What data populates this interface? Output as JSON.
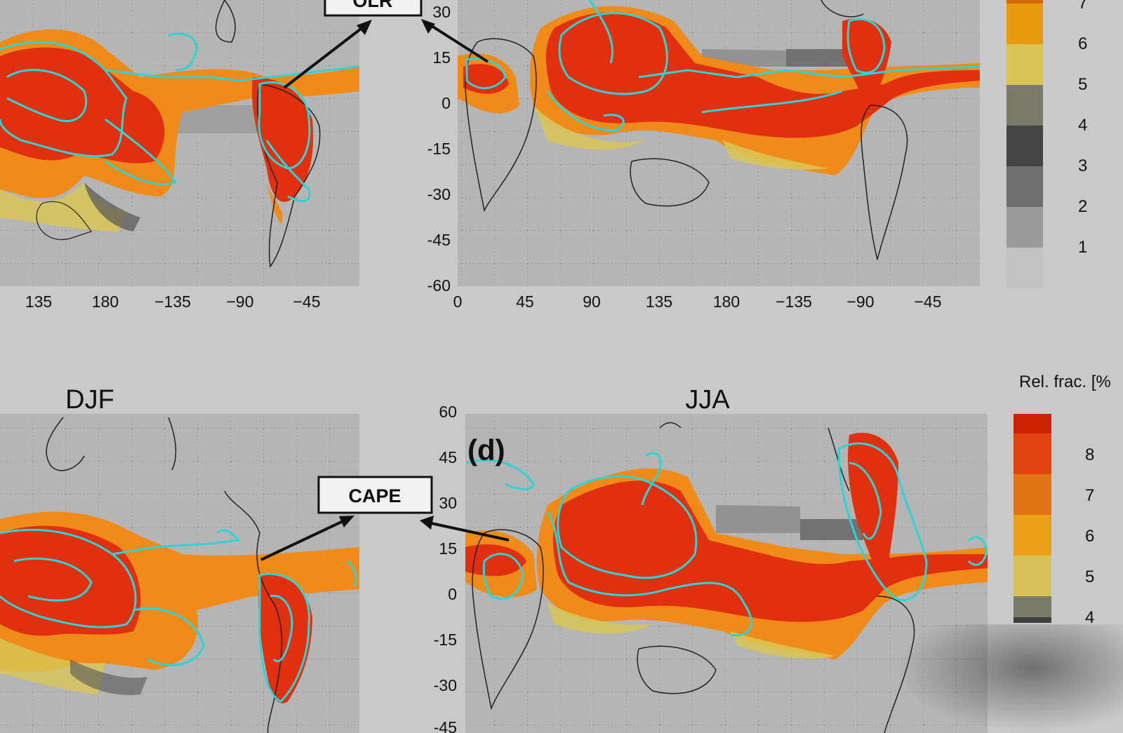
{
  "panels": {
    "top_left": {
      "x_ticks": [
        "135",
        "180",
        "−135",
        "−90",
        "−45"
      ],
      "box_label": "OLR"
    },
    "top_right": {
      "y_ticks": [
        "30",
        "15",
        "0",
        "-15",
        "-30",
        "-45",
        "-60"
      ],
      "x_ticks": [
        "0",
        "45",
        "90",
        "135",
        "180",
        "−135",
        "−90",
        "−45"
      ]
    },
    "bottom_left": {
      "title": "DJF",
      "box_label": "CAPE"
    },
    "bottom_right": {
      "title": "JJA",
      "panel_letter": "(d)",
      "y_ticks": [
        "60",
        "45",
        "30",
        "15",
        "0",
        "-15",
        "-30",
        "-45"
      ]
    }
  },
  "legend_top": {
    "labels": [
      "7",
      "6",
      "5",
      "4",
      "3",
      "2",
      "1"
    ],
    "colors": [
      "#d46a07",
      "#e79b0c",
      "#d9c556",
      "#7b7b6a",
      "#444444",
      "#6e6e6e",
      "#9b9b9b",
      "#c2c2c2"
    ]
  },
  "legend_bottom": {
    "title": "Rel. frac. [%",
    "labels": [
      "8",
      "7",
      "6",
      "5",
      "4"
    ],
    "colors": [
      "#cc2200",
      "#e0430d",
      "#e07415",
      "#e9a016",
      "#d7c25a",
      "#7b7b6a",
      "#3f3f3f"
    ]
  },
  "colors": {
    "map_background": "#b5b5b5",
    "contour": "#2ed3d3",
    "convection_core": "#e0300f",
    "convection_edge": "#f08a18",
    "convection_fringe": "#e8c547"
  }
}
